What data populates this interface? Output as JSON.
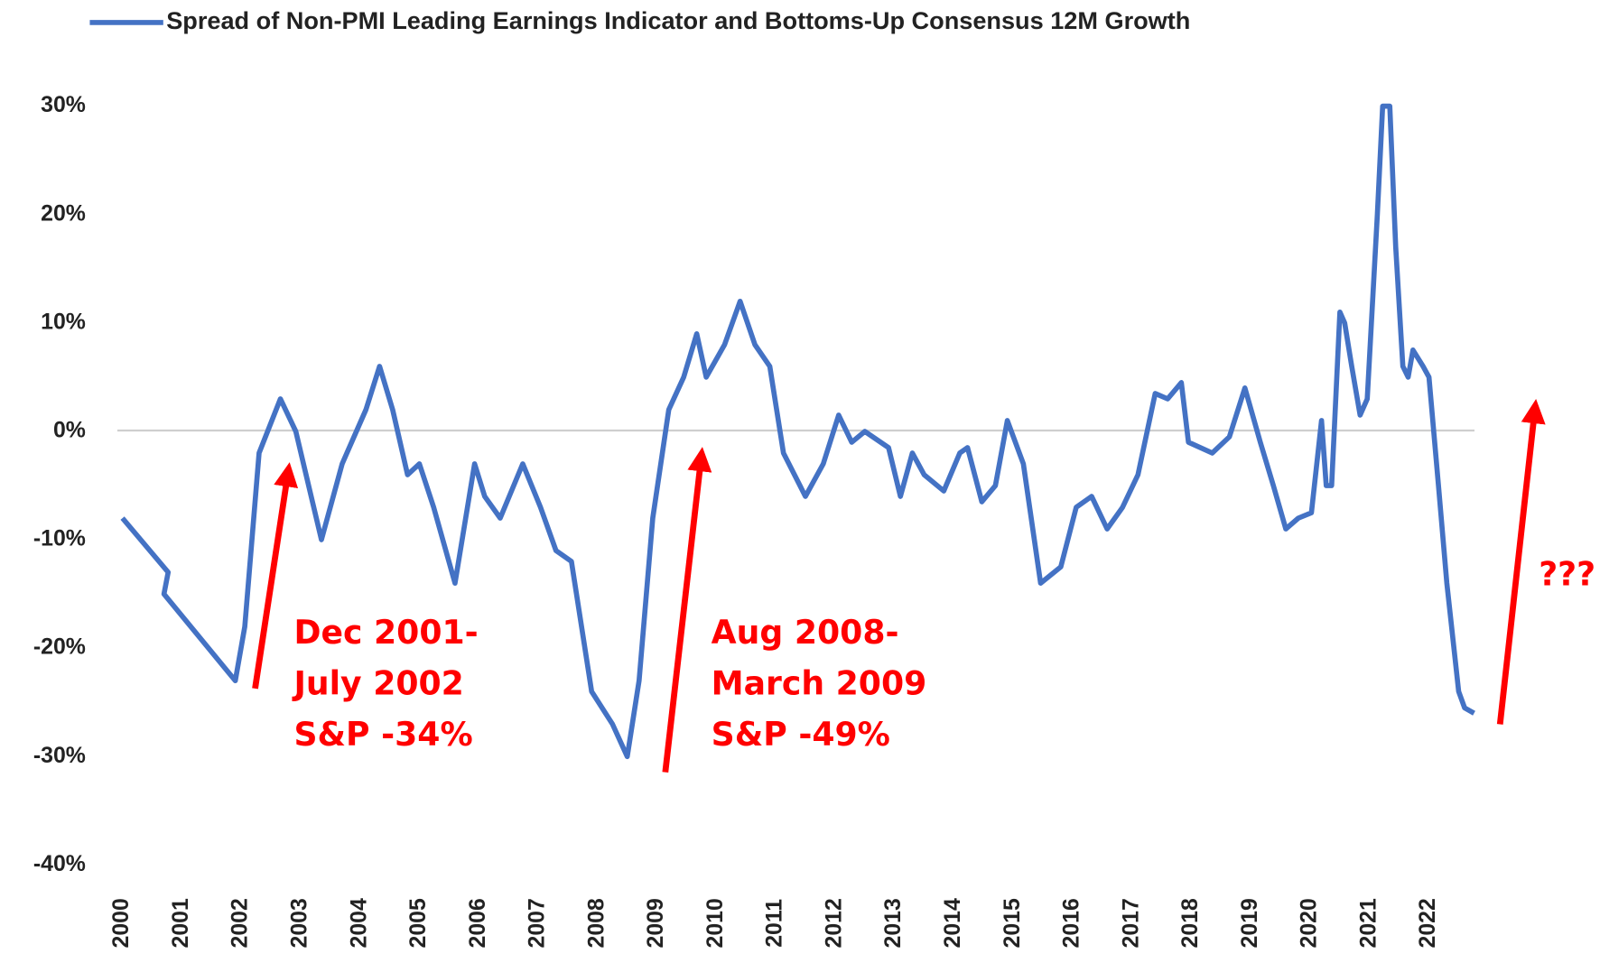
{
  "chart_data": {
    "type": "line",
    "legend": "top",
    "series": [
      {
        "name": "Spread of Non-PMI Leading Earnings Indicator and Bottoms-Up Consensus 12M Growth",
        "color": "#4472c4",
        "values": [
          -8,
          -13,
          -15,
          -23,
          -18,
          -2,
          3,
          0,
          -10,
          -3,
          2,
          6,
          2,
          -4,
          -3,
          -7,
          -14,
          -3,
          -6,
          -8,
          -3,
          -7,
          -11,
          -12,
          -24,
          -27,
          -30,
          -23,
          -8,
          2,
          5,
          9,
          5,
          8,
          12,
          8,
          6,
          -2,
          -6,
          -3,
          1.5,
          -1,
          0,
          -1.5,
          -6,
          -2,
          -4,
          -5.5,
          -2,
          -1.5,
          -6.5,
          -5,
          1,
          -3,
          -14,
          -12.5,
          -7,
          -6,
          -9,
          -7,
          -4,
          3.5,
          3,
          4.5,
          -1,
          -2,
          -0.5,
          4,
          -1,
          -5,
          -9,
          -8,
          -7.5,
          1,
          -5,
          -5,
          11,
          10,
          6,
          1.5,
          3,
          20,
          30,
          30,
          17,
          6,
          5,
          7.5,
          6,
          5,
          -5,
          -14,
          -24,
          -25.5,
          -26
        ]
      }
    ],
    "x": [
      2000.0,
      2000.77,
      2000.7,
      2001.9,
      2002.06,
      2002.3,
      2002.66,
      2002.92,
      2003.35,
      2003.7,
      2004.1,
      2004.33,
      2004.55,
      2004.8,
      2005.0,
      2005.24,
      2005.6,
      2005.93,
      2006.1,
      2006.36,
      2006.74,
      2007.04,
      2007.3,
      2007.56,
      2007.9,
      2008.25,
      2008.5,
      2008.7,
      2008.93,
      2009.2,
      2009.45,
      2009.67,
      2009.83,
      2010.14,
      2010.4,
      2010.65,
      2010.9,
      2011.13,
      2011.5,
      2011.8,
      2012.06,
      2012.28,
      2012.5,
      2012.9,
      2013.1,
      2013.3,
      2013.5,
      2013.83,
      2014.1,
      2014.23,
      2014.47,
      2014.7,
      2014.9,
      2015.17,
      2015.46,
      2015.8,
      2016.06,
      2016.32,
      2016.58,
      2016.84,
      2017.1,
      2017.39,
      2017.6,
      2017.83,
      2017.95,
      2018.35,
      2018.64,
      2018.9,
      2019.16,
      2019.38,
      2019.59,
      2019.8,
      2020.02,
      2020.19,
      2020.27,
      2020.36,
      2020.5,
      2020.58,
      2020.7,
      2020.84,
      2020.96,
      2021.13,
      2021.22,
      2021.34,
      2021.44,
      2021.56,
      2021.65,
      2021.73,
      2021.9,
      2022.0,
      2022.16,
      2022.3,
      2022.5,
      2022.6,
      2022.76
    ],
    "xlim": [
      2000,
      2023
    ],
    "xticks": [
      2000,
      2001,
      2002,
      2003,
      2004,
      2005,
      2006,
      2007,
      2008,
      2009,
      2010,
      2011,
      2012,
      2013,
      2014,
      2015,
      2016,
      2017,
      2018,
      2019,
      2020,
      2021,
      2022
    ],
    "ylim": [
      -40,
      30
    ],
    "yticks": [
      {
        "value": 30,
        "label": "30%"
      },
      {
        "value": 20,
        "label": "20%"
      },
      {
        "value": 10,
        "label": "10%"
      },
      {
        "value": 0,
        "label": "0%"
      },
      {
        "value": -10,
        "label": "-10%"
      },
      {
        "value": -20,
        "label": "-20%"
      },
      {
        "value": -30,
        "label": "-30%"
      },
      {
        "value": -40,
        "label": "-40%"
      }
    ],
    "annotations": [
      {
        "lines": [
          "Dec 2001-",
          "July 2002",
          "S&P -34%"
        ],
        "color": "#ff0000"
      },
      {
        "lines": [
          "Aug 2008-",
          "March 2009",
          "S&P -49%"
        ],
        "color": "#ff0000"
      },
      {
        "lines": [
          "???"
        ],
        "color": "#ff0000"
      }
    ]
  }
}
